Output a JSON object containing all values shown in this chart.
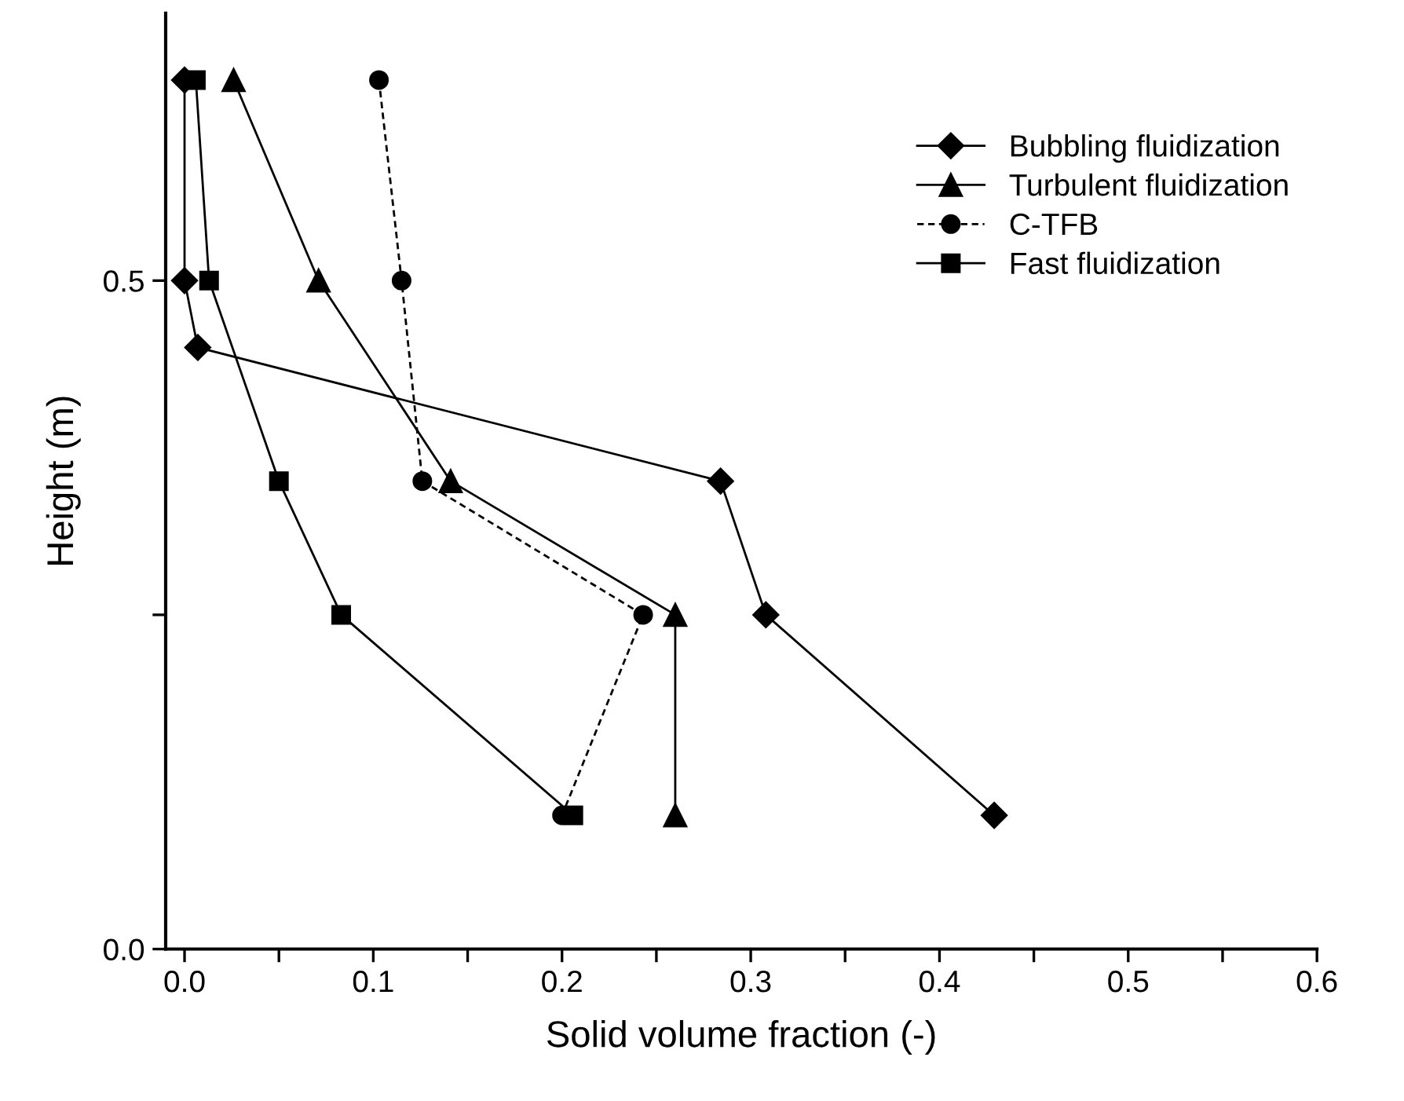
{
  "chart_data": {
    "type": "line",
    "xlabel": "Solid volume fraction (-)",
    "ylabel": "Height (m)",
    "xlim": [
      -0.01,
      0.6
    ],
    "ylim": [
      0,
      0.7
    ],
    "xticks": [
      {
        "value": 0,
        "label": "0.0"
      },
      {
        "value": 0.05,
        "label": null
      },
      0.1,
      {
        "value": 0.15,
        "label": null
      },
      0.2,
      {
        "value": 0.25,
        "label": null
      },
      0.3,
      {
        "value": 0.35,
        "label": null
      },
      0.4,
      {
        "value": 0.45,
        "label": null
      },
      0.5,
      {
        "value": 0.55,
        "label": null
      },
      0.6
    ],
    "yticks": [
      {
        "value": 0,
        "label": "0.0"
      },
      {
        "value": 0.25,
        "label": null
      },
      0.5
    ],
    "grid": false,
    "legend": "top right",
    "series": [
      {
        "name": "Bubbling fluidization",
        "color": "#000000",
        "marker": "diamond",
        "line_style": "solid",
        "x": [
          0.0,
          0.0,
          0.007,
          0.284,
          0.308,
          0.429
        ],
        "values": [
          0.65,
          0.5,
          0.45,
          0.35,
          0.25,
          0.1
        ]
      },
      {
        "name": "Turbulent fluidization",
        "color": "#000000",
        "marker": "triangle",
        "line_style": "solid",
        "x": [
          0.026,
          0.071,
          0.141,
          0.26,
          0.26
        ],
        "values": [
          0.65,
          0.5,
          0.35,
          0.25,
          0.1
        ]
      },
      {
        "name": "C-TFB",
        "color": "#000000",
        "marker": "circle",
        "line_style": "dashed",
        "x": [
          0.103,
          0.115,
          0.126,
          0.243,
          0.2
        ],
        "values": [
          0.65,
          0.5,
          0.35,
          0.25,
          0.1
        ]
      },
      {
        "name": "Fast fluidization",
        "color": "#000000",
        "marker": "square",
        "line_style": "solid",
        "x": [
          0.006,
          0.013,
          0.05,
          0.083,
          0.206
        ],
        "values": [
          0.65,
          0.5,
          0.35,
          0.25,
          0.1
        ]
      }
    ]
  }
}
